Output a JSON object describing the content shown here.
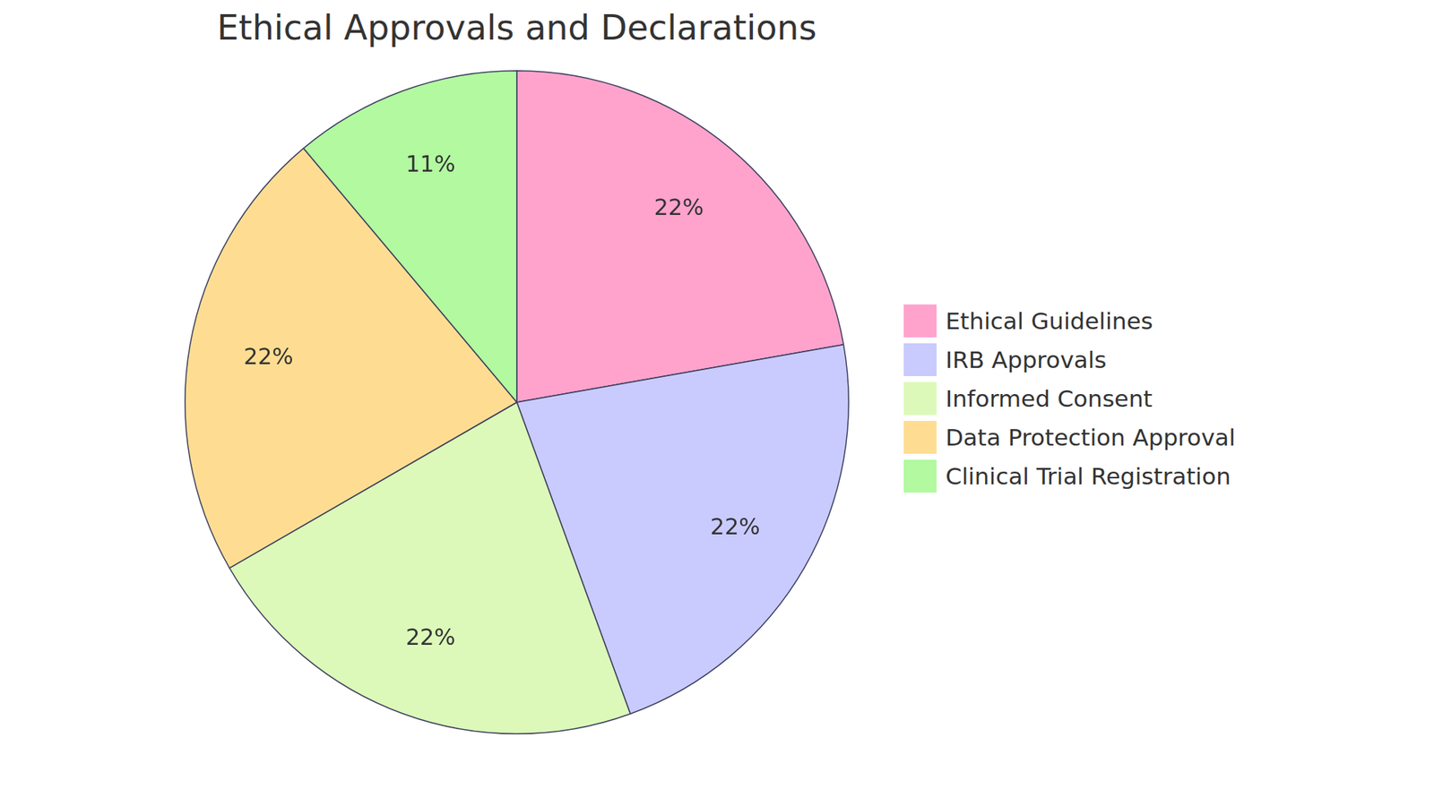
{
  "chart_data": {
    "type": "pie",
    "title": "Ethical Approvals and Declarations",
    "categories": [
      "Ethical Guidelines",
      "IRB Approvals",
      "Informed Consent",
      "Data Protection Approval",
      "Clinical Trial Registration"
    ],
    "values": [
      22,
      22,
      22,
      22,
      11
    ],
    "value_labels": [
      "22%",
      "22%",
      "22%",
      "22%",
      "11%"
    ],
    "colors": [
      "#ffa3cd",
      "#c9cbff",
      "#dcf9b9",
      "#fedd93",
      "#b2f9a0"
    ],
    "data_labels": true,
    "legend": "right"
  }
}
